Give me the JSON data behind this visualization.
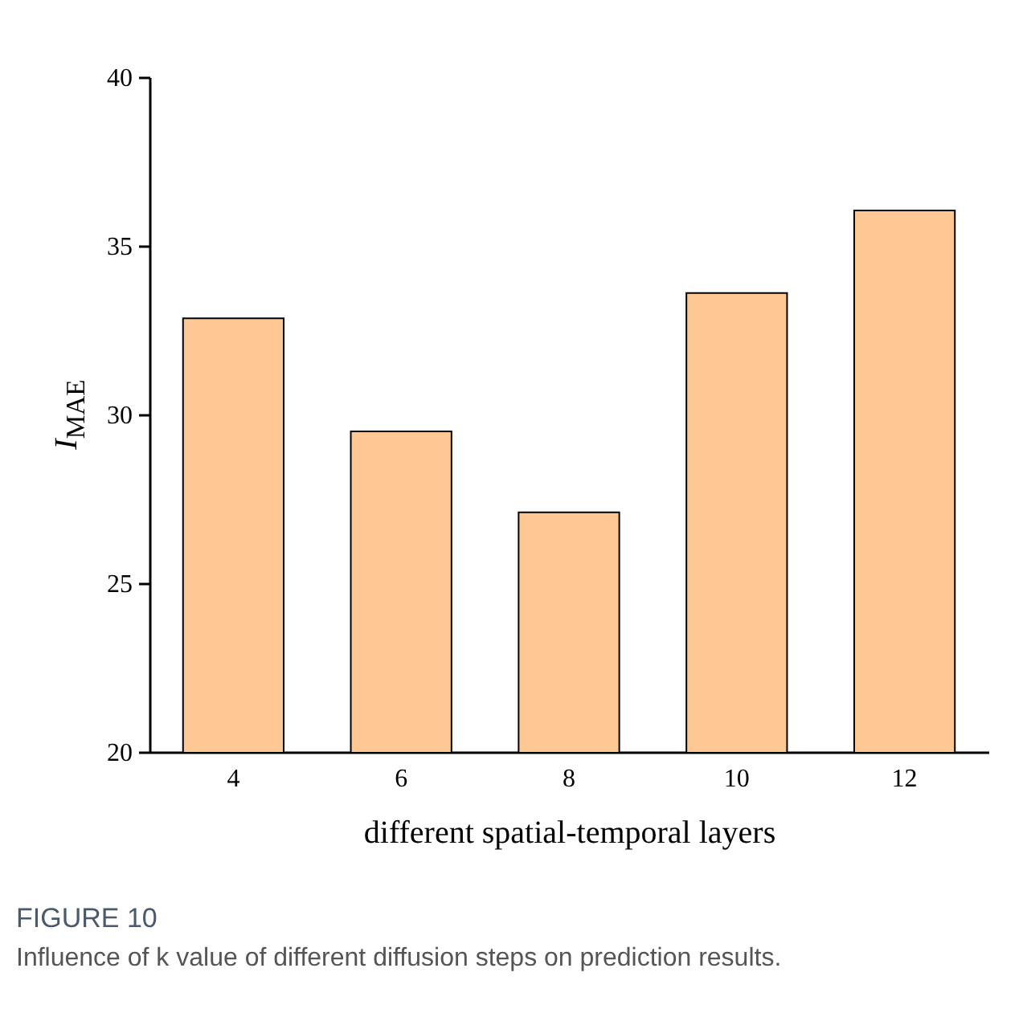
{
  "chart_data": {
    "type": "bar",
    "title": "FIGURE 10",
    "annotations": [
      "Influence of k value of different diffusion steps on prediction results."
    ],
    "xlabel": "different spatial-temporal layers",
    "ylabel": "I$_{MAE}$",
    "categories": [
      "4",
      "6",
      "8",
      "10",
      "12"
    ],
    "values": [
      32.85,
      29.5,
      27.1,
      33.6,
      36.05
    ],
    "color": "#fec894",
    "ylim": [
      20,
      40
    ],
    "yticks": [
      20,
      25,
      30,
      35,
      40
    ],
    "grid": false
  }
}
